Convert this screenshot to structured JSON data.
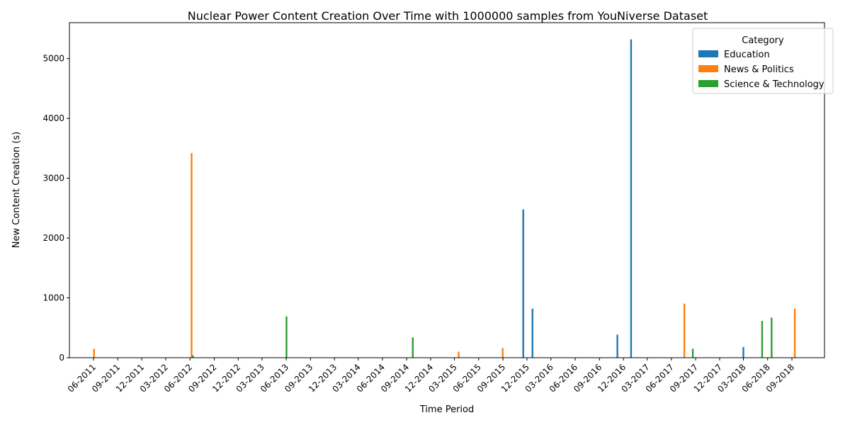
{
  "chart_data": {
    "type": "bar",
    "title": "Nuclear Power Content Creation Over Time with 1000000 samples from YouNiverse Dataset",
    "xlabel": "Time Period",
    "ylabel": "New Content Creation (s)",
    "ylim": [
      0,
      5600
    ],
    "yticks": [
      0,
      1000,
      2000,
      3000,
      4000,
      5000
    ],
    "grid": false,
    "legend": {
      "title": "Category",
      "placement": "top-right"
    },
    "categories": [
      "06-2011",
      "09-2011",
      "12-2011",
      "03-2012",
      "06-2012",
      "09-2012",
      "12-2012",
      "03-2013",
      "06-2013",
      "09-2013",
      "12-2013",
      "03-2014",
      "06-2014",
      "09-2014",
      "12-2014",
      "03-2015",
      "06-2015",
      "09-2015",
      "12-2015",
      "03-2016",
      "06-2016",
      "09-2016",
      "12-2016",
      "03-2017",
      "06-2017",
      "09-2017",
      "12-2017",
      "03-2018",
      "06-2018",
      "09-2018"
    ],
    "x_start": "2011-06",
    "x_end": "2018-09",
    "series": [
      {
        "name": "Education",
        "color": "#1f77b4",
        "points": [
          {
            "x": "2015-11-17",
            "y": 2480
          },
          {
            "x": "2015-12-22",
            "y": 820
          },
          {
            "x": "2016-11-08",
            "y": 385
          },
          {
            "x": "2016-12-30",
            "y": 5320
          },
          {
            "x": "2018-03-01",
            "y": 180
          }
        ]
      },
      {
        "name": "News & Politics",
        "color": "#ff7f0e",
        "points": [
          {
            "x": "2011-06-03",
            "y": 150
          },
          {
            "x": "2012-06-07",
            "y": 3420
          },
          {
            "x": "2015-03-17",
            "y": 100
          },
          {
            "x": "2015-08-31",
            "y": 160
          },
          {
            "x": "2017-07-20",
            "y": 905
          },
          {
            "x": "2018-09-12",
            "y": 820
          }
        ]
      },
      {
        "name": "Science & Technology",
        "color": "#2ca02c",
        "points": [
          {
            "x": "2012-06-12",
            "y": 40
          },
          {
            "x": "2013-06-02",
            "y": 690
          },
          {
            "x": "2014-09-24",
            "y": 340
          },
          {
            "x": "2017-08-21",
            "y": 150
          },
          {
            "x": "2018-05-11",
            "y": 615
          },
          {
            "x": "2018-06-16",
            "y": 670
          }
        ]
      }
    ]
  }
}
